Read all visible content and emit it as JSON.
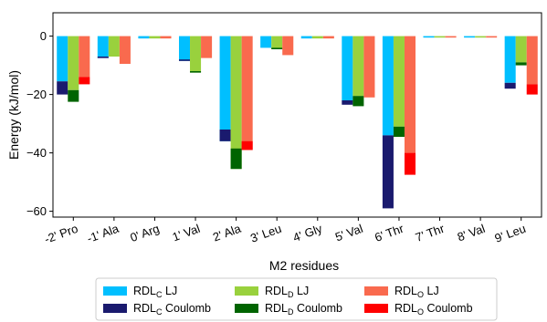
{
  "chart_data": {
    "type": "bar",
    "stacked_per_system": true,
    "categories": [
      "-2' Pro",
      "-1' Ala",
      "0' Arg",
      "1' Val",
      "2' Ala",
      "3' Leu",
      "4' Gly",
      "5' Val",
      "6' Thr",
      "7' Thr",
      "8' Val",
      "9' Leu"
    ],
    "xlabel": "M2 residues",
    "ylabel": "Energy (kJ/mol)",
    "ylim": [
      -62,
      8
    ],
    "yticks": [
      0,
      -20,
      -40,
      -60
    ],
    "grid": false,
    "legend_position": "bottom",
    "series": [
      {
        "name": "RDLC LJ",
        "legend_main": "RDL",
        "legend_sub": "C",
        "legend_suffix": " LJ",
        "color": "#00bfff",
        "system": "C",
        "values": [
          -15.5,
          -7.5,
          -0.8,
          -8.5,
          -36,
          -4,
          -0.8,
          -22,
          -34,
          -0.5,
          -0.5,
          -16
        ]
      },
      {
        "name": "RDLC Coulomb",
        "legend_main": "RDL",
        "legend_sub": "C",
        "legend_suffix": " Coulomb",
        "color": "#1a1a6e",
        "system": "C",
        "values": [
          -4.5,
          0.5,
          0,
          0.5,
          4,
          0,
          0,
          -1.5,
          -25,
          0,
          0,
          -2
        ]
      },
      {
        "name": "RDLD LJ",
        "legend_main": "RDL",
        "legend_sub": "D",
        "legend_suffix": " LJ",
        "color": "#99d13d",
        "system": "D",
        "values": [
          -18.5,
          -7,
          -0.8,
          -12.5,
          -45.5,
          -4.5,
          -0.8,
          -20.5,
          -31,
          -0.5,
          -0.5,
          -9
        ]
      },
      {
        "name": "RDLD Coulomb",
        "legend_main": "RDL",
        "legend_sub": "D",
        "legend_suffix": " Coulomb",
        "color": "#006400",
        "system": "D",
        "values": [
          -4,
          0,
          0,
          0.5,
          7,
          0.5,
          0,
          -3.5,
          -3.5,
          0,
          0,
          -1
        ]
      },
      {
        "name": "RDLO LJ",
        "legend_main": "RDL",
        "legend_sub": "O",
        "legend_suffix": " LJ",
        "color": "#f96a4e",
        "system": "O",
        "values": [
          -14,
          -9.5,
          -0.8,
          -7.5,
          -39,
          -6.5,
          -0.8,
          -21,
          -40,
          -0.5,
          -0.5,
          -16.5
        ]
      },
      {
        "name": "RDLO Coulomb",
        "legend_main": "RDL",
        "legend_sub": "O",
        "legend_suffix": " Coulomb",
        "color": "#ff0000",
        "system": "O",
        "values": [
          -2.5,
          0,
          0,
          0,
          3,
          0,
          0,
          0,
          -7.5,
          0,
          0,
          -3.5
        ]
      }
    ]
  }
}
